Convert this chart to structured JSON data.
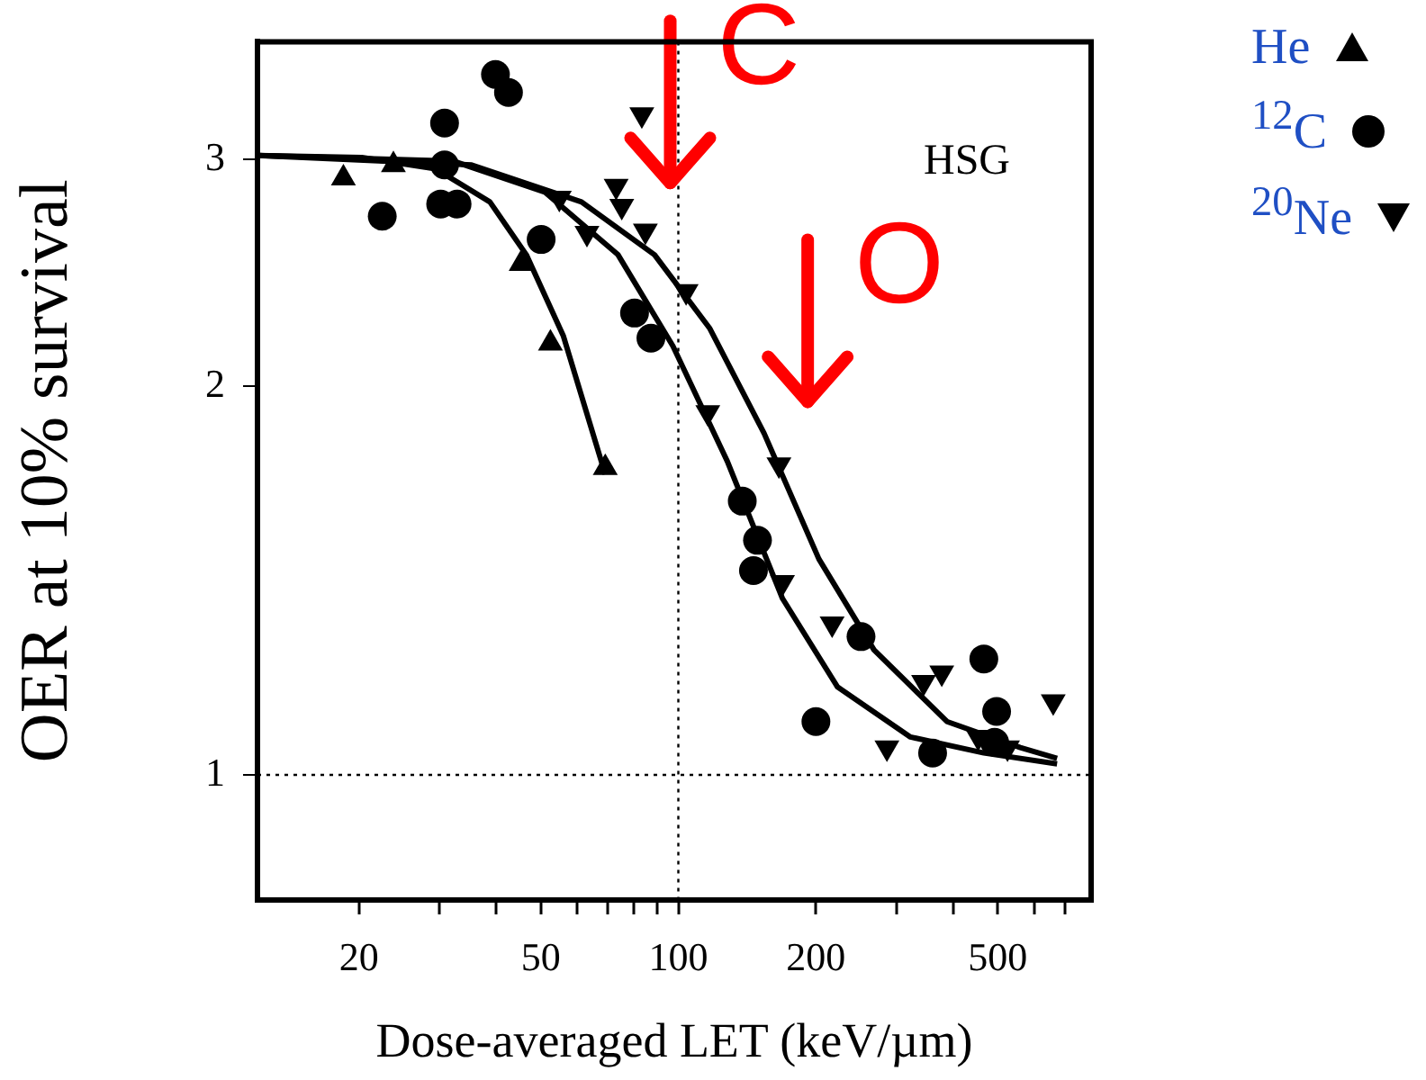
{
  "chart_data": {
    "type": "scatter",
    "xlabel": "Dose-averaged LET (keV/µm)",
    "ylabel": "OER at 10% survival",
    "log": "xy",
    "xlim": [
      12,
      800
    ],
    "ylim": [
      0.8,
      3.7
    ],
    "xticks": [
      20,
      {
        "value": 30,
        "label": null
      },
      {
        "value": 40,
        "label": null
      },
      50,
      {
        "value": 60,
        "label": null
      },
      {
        "value": 70,
        "label": null
      },
      {
        "value": 80,
        "label": null
      },
      {
        "value": 90,
        "label": null
      },
      100,
      200,
      {
        "value": 300,
        "label": null
      },
      {
        "value": 400,
        "label": null
      },
      500,
      {
        "value": 600,
        "label": null
      },
      {
        "value": 700,
        "label": null
      }
    ],
    "yticks": [
      1,
      2,
      3
    ],
    "grid": false,
    "legend": "top right",
    "ref_lines": [
      {
        "axis": "x",
        "value": 100,
        "color": "#000000",
        "line_style": "dotted"
      },
      {
        "axis": "y",
        "value": 1,
        "color": "#000000",
        "line_style": "dotted"
      }
    ],
    "annotations": [
      "HSG",
      {
        "text": "C",
        "x": 96,
        "y": 2.83
      },
      "O"
    ],
    "series": [
      {
        "name": "He",
        "marker": "triangle",
        "color": "#000000",
        "x": [
          18.5,
          23.8,
          45.3,
          52.5,
          69.2
        ],
        "values": [
          2.9,
          2.97,
          2.49,
          2.16,
          1.73
        ]
      },
      {
        "name": "$^{12}$C",
        "marker": "circle",
        "color": "#000000",
        "x": [
          39.8,
          42.5,
          30.8,
          30.8,
          22.5,
          30.2,
          32.8,
          50.1,
          80.2,
          87.1,
          138,
          149,
          146,
          251,
          200,
          360,
          466,
          497,
          492
        ],
        "values": [
          3.49,
          3.38,
          3.2,
          2.97,
          2.71,
          2.77,
          2.77,
          2.6,
          2.28,
          2.18,
          1.63,
          1.52,
          1.44,
          1.28,
          1.1,
          1.04,
          1.23,
          1.12,
          1.06
        ]
      },
      {
        "name": "$^{20}$Ne",
        "marker": "triangle_down",
        "color": "#000000",
        "x": [
          83.2,
          73.1,
          75.2,
          84.7,
          63.1,
          54.9,
          104,
          116,
          166,
          169,
          217,
          344,
          377,
          286,
          453,
          525,
          661
        ],
        "values": [
          3.25,
          2.86,
          2.76,
          2.64,
          2.63,
          2.8,
          2.37,
          1.91,
          1.74,
          1.41,
          1.31,
          1.18,
          1.2,
          1.05,
          1.07,
          1.05,
          1.14
        ]
      },
      {
        "type": "line",
        "marker": "none",
        "color": "#000000",
        "x": [
          12,
          20.3,
          29.4,
          38.7,
          46.5,
          56,
          69.2
        ],
        "values": [
          3.02,
          3.01,
          2.95,
          2.78,
          2.53,
          2.19,
          1.71
        ]
      },
      {
        "type": "line",
        "marker": "none",
        "color": "#000000",
        "x": [
          12,
          32.2,
          51,
          73.8,
          97.3,
          128,
          169,
          223,
          322,
          466,
          674
        ],
        "values": [
          3.02,
          2.99,
          2.83,
          2.53,
          2.15,
          1.75,
          1.37,
          1.17,
          1.07,
          1.04,
          1.02
        ]
      },
      {
        "type": "line",
        "marker": "none",
        "color": "#000000",
        "x": [
          12,
          35.3,
          61.4,
          88.7,
          117,
          154,
          203,
          268,
          387,
          560,
          674
        ],
        "values": [
          3.02,
          2.97,
          2.78,
          2.53,
          2.22,
          1.84,
          1.47,
          1.25,
          1.1,
          1.05,
          1.03
        ]
      }
    ]
  }
}
